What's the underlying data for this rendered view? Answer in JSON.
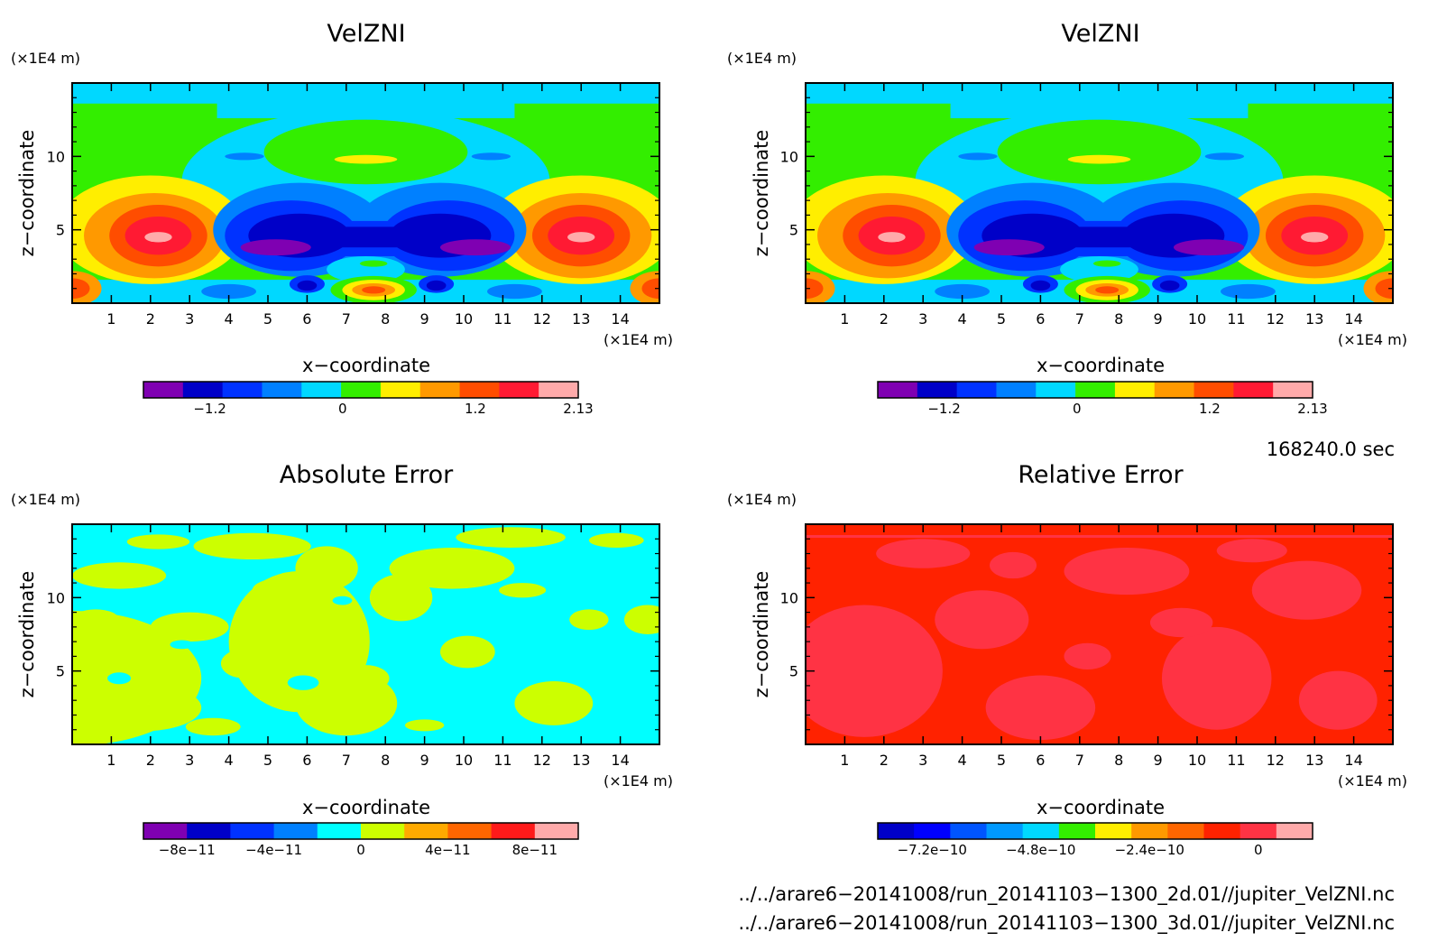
{
  "panels": [
    {
      "title": "VelZNI",
      "y_unit": "(×1E4 m)",
      "x_unit": "(×1E4 m)",
      "xlabel": "x−coordinate",
      "ylabel": "z−coordinate",
      "colorbar": {
        "colors": [
          "#7f00b2",
          "#0000c8",
          "#0032ff",
          "#0080ff",
          "#00d8ff",
          "#33ee00",
          "#ffee00",
          "#ff9900",
          "#ff4d00",
          "#ff1a33",
          "#ffaaaa"
        ],
        "tick_labels": [
          "−1.2",
          "0",
          "1.2",
          "2.13"
        ]
      }
    },
    {
      "title": "VelZNI",
      "y_unit": "(×1E4 m)",
      "x_unit": "(×1E4 m)",
      "xlabel": "x−coordinate",
      "ylabel": "z−coordinate",
      "colorbar": {
        "colors": [
          "#7f00b2",
          "#0000c8",
          "#0032ff",
          "#0080ff",
          "#00d8ff",
          "#33ee00",
          "#ffee00",
          "#ff9900",
          "#ff4d00",
          "#ff1a33",
          "#ffaaaa"
        ],
        "tick_labels": [
          "−1.2",
          "0",
          "1.2",
          "2.13"
        ]
      }
    },
    {
      "title": "Absolute Error",
      "y_unit": "(×1E4 m)",
      "x_unit": "(×1E4 m)",
      "xlabel": "x−coordinate",
      "ylabel": "z−coordinate",
      "colorbar": {
        "colors": [
          "#7f00b2",
          "#0000c8",
          "#0032ff",
          "#0080ff",
          "#00ffff",
          "#ccff00",
          "#ffaa00",
          "#ff6600",
          "#ff1a1a",
          "#ffaaaa"
        ],
        "tick_labels": [
          "−8e−11",
          "−4e−11",
          "0",
          "4e−11",
          "8e−11"
        ]
      }
    },
    {
      "title": "Relative Error",
      "y_unit": "(×1E4 m)",
      "x_unit": "(×1E4 m)",
      "xlabel": "x−coordinate",
      "ylabel": "z−coordinate",
      "colorbar": {
        "colors": [
          "#0000c8",
          "#0000ff",
          "#0055ff",
          "#0099ff",
          "#00d8ff",
          "#33ee00",
          "#ffee00",
          "#ff9900",
          "#ff6600",
          "#ff2200",
          "#ff3344",
          "#ffaaaa"
        ],
        "tick_labels": [
          "−7.2e−10",
          "−4.8e−10",
          "−2.4e−10",
          "0"
        ]
      }
    }
  ],
  "time_label": "168240.0 sec",
  "file_paths": [
    "../../arare6−20141008/run_20141103−1300_2d.01//jupiter_VelZNI.nc",
    "../../arare6−20141008/run_20141103−1300_3d.01//jupiter_VelZNI.nc"
  ],
  "chart_data": [
    {
      "type": "heatmap",
      "title": "VelZNI",
      "xlabel": "x−coordinate",
      "ylabel": "z−coordinate",
      "x_unit": "(×1E4 m)",
      "y_unit": "(×1E4 m)",
      "xlim": [
        0,
        15
      ],
      "ylim": [
        0,
        15
      ],
      "x_ticks": [
        1,
        2,
        3,
        4,
        5,
        6,
        7,
        8,
        9,
        10,
        11,
        12,
        13,
        14
      ],
      "y_ticks": [
        5,
        10
      ],
      "colorbar_range": [
        -1.8,
        2.13
      ],
      "colorbar_ticks": [
        -1.2,
        0,
        1.2,
        2.13
      ],
      "features": [
        {
          "x": 2.2,
          "z": 4.5,
          "value": 2.13
        },
        {
          "x": 13.0,
          "z": 4.5,
          "value": 2.13
        },
        {
          "x": 5.2,
          "z": 3.8,
          "value": -1.8
        },
        {
          "x": 10.3,
          "z": 3.8,
          "value": -1.8
        },
        {
          "x": 7.7,
          "z": 0.9,
          "value": 1.2
        },
        {
          "x": 0.3,
          "z": 1.0,
          "value": 1.5
        },
        {
          "x": 14.8,
          "z": 1.0,
          "value": 1.5
        }
      ]
    },
    {
      "type": "heatmap",
      "title": "VelZNI",
      "xlabel": "x−coordinate",
      "ylabel": "z−coordinate",
      "x_unit": "(×1E4 m)",
      "y_unit": "(×1E4 m)",
      "xlim": [
        0,
        15
      ],
      "ylim": [
        0,
        15
      ],
      "x_ticks": [
        1,
        2,
        3,
        4,
        5,
        6,
        7,
        8,
        9,
        10,
        11,
        12,
        13,
        14
      ],
      "y_ticks": [
        5,
        10
      ],
      "colorbar_range": [
        -1.8,
        2.13
      ],
      "colorbar_ticks": [
        -1.2,
        0,
        1.2,
        2.13
      ],
      "features": [
        {
          "x": 2.2,
          "z": 4.5,
          "value": 2.13
        },
        {
          "x": 13.0,
          "z": 4.5,
          "value": 2.13
        },
        {
          "x": 5.2,
          "z": 3.8,
          "value": -1.8
        },
        {
          "x": 10.3,
          "z": 3.8,
          "value": -1.8
        },
        {
          "x": 7.7,
          "z": 0.9,
          "value": 1.2
        },
        {
          "x": 0.3,
          "z": 1.0,
          "value": 1.5
        },
        {
          "x": 14.8,
          "z": 1.0,
          "value": 1.5
        }
      ]
    },
    {
      "type": "heatmap",
      "title": "Absolute Error",
      "xlabel": "x−coordinate",
      "ylabel": "z−coordinate",
      "x_unit": "(×1E4 m)",
      "y_unit": "(×1E4 m)",
      "xlim": [
        0,
        15
      ],
      "ylim": [
        0,
        15
      ],
      "x_ticks": [
        1,
        2,
        3,
        4,
        5,
        6,
        7,
        8,
        9,
        10,
        11,
        12,
        13,
        14
      ],
      "y_ticks": [
        5,
        10
      ],
      "colorbar_range": [
        -1e-10,
        1e-10
      ],
      "colorbar_ticks": [
        -8e-11,
        -4e-11,
        0,
        4e-11,
        8e-11
      ],
      "dominant_values": [
        -2e-11,
        2e-11
      ]
    },
    {
      "type": "heatmap",
      "title": "Relative Error",
      "xlabel": "x−coordinate",
      "ylabel": "z−coordinate",
      "x_unit": "(×1E4 m)",
      "y_unit": "(×1E4 m)",
      "xlim": [
        0,
        15
      ],
      "ylim": [
        0,
        15
      ],
      "x_ticks": [
        1,
        2,
        3,
        4,
        5,
        6,
        7,
        8,
        9,
        10,
        11,
        12,
        13,
        14
      ],
      "y_ticks": [
        5,
        10
      ],
      "colorbar_range": [
        -8.4e-10,
        1.2e-10
      ],
      "colorbar_ticks": [
        -7.2e-10,
        -4.8e-10,
        -2.4e-10,
        0
      ],
      "dominant_values": [
        0,
        4e-11
      ]
    }
  ]
}
